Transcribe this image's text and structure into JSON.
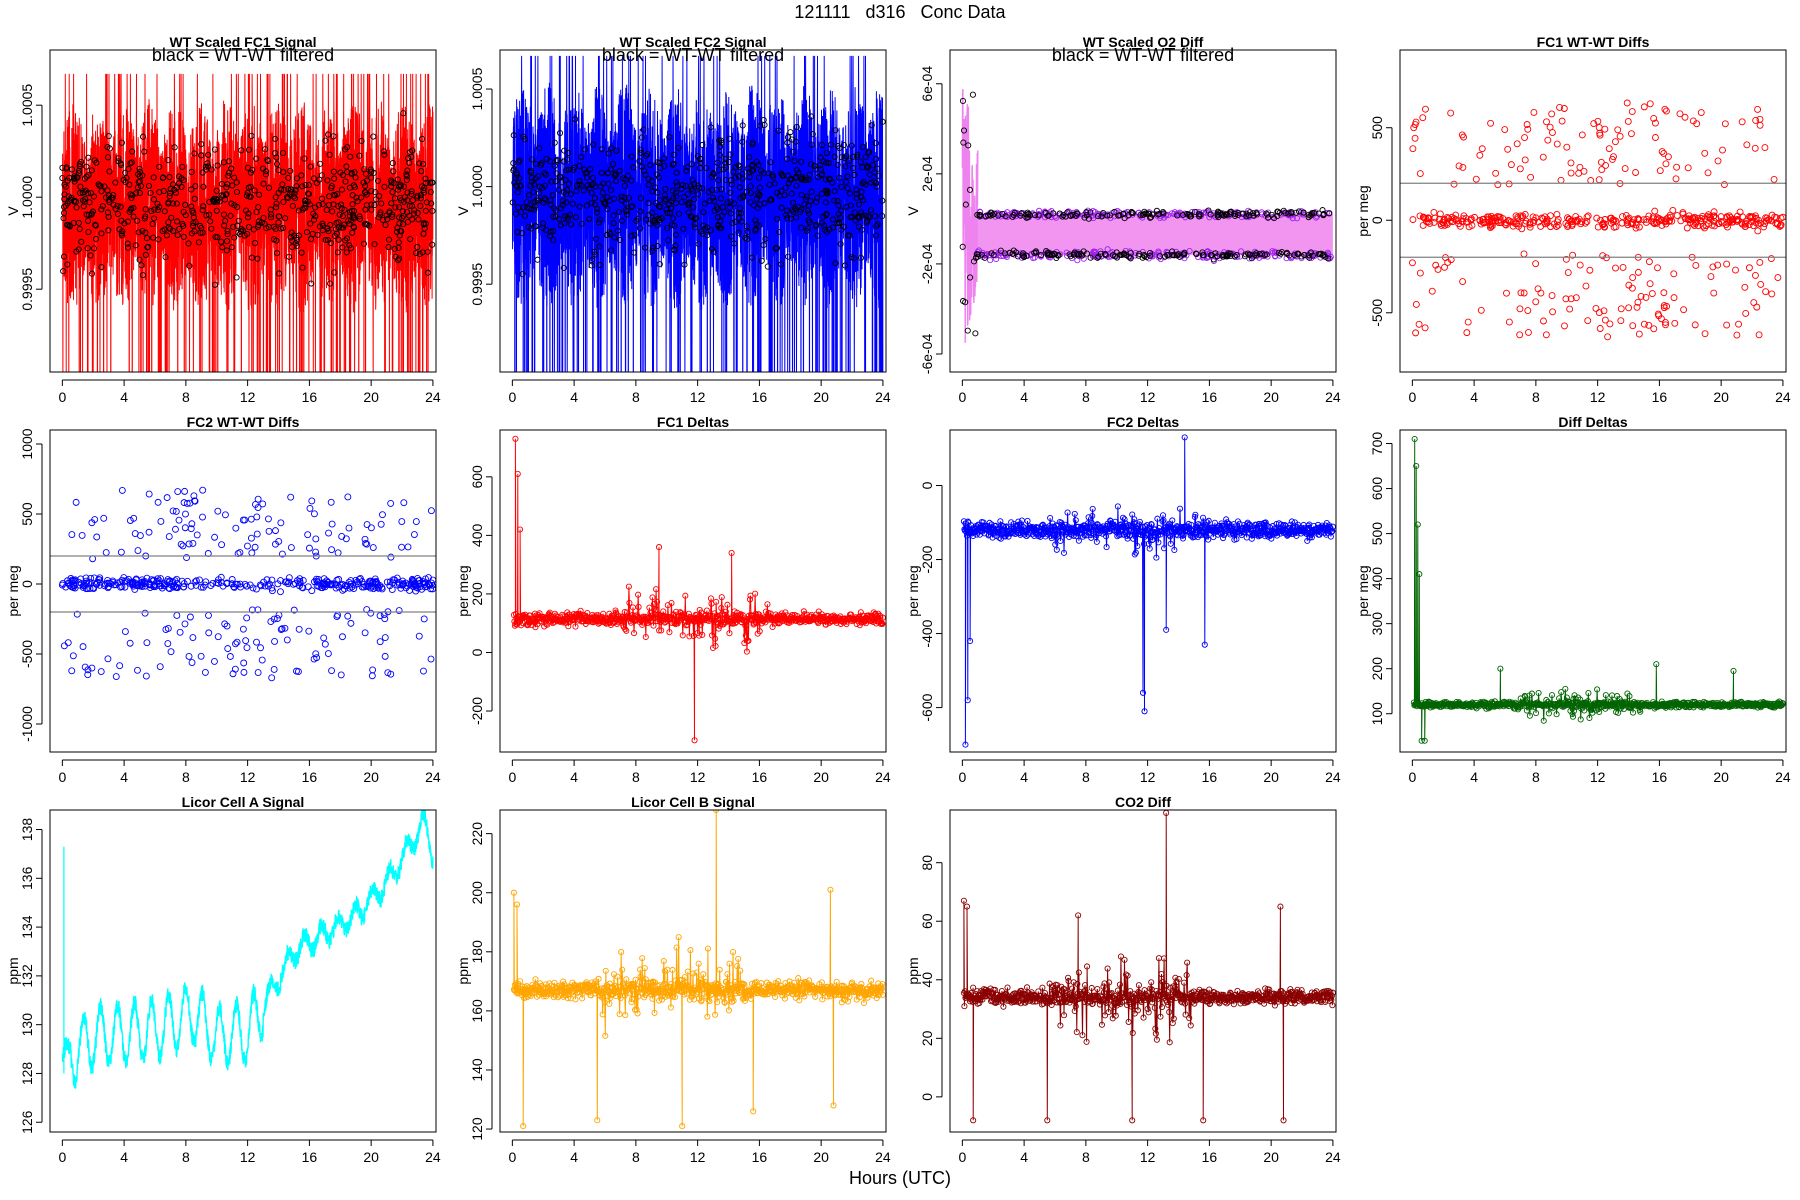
{
  "page": {
    "title": "121111   d316   Conc Data",
    "xlabel": "Hours (UTC)"
  },
  "colors": {
    "fc1": "#ff0000",
    "fc2": "#0000ff",
    "o2diff": "#ee82ee",
    "o2diff_points": "#a020f0",
    "filtered": "#000000",
    "diffdeltas": "#006400",
    "licorA": "#00ffff",
    "licorB": "#ffa500",
    "co2diff": "#8b0000",
    "refline": "#808080"
  },
  "chart_data": [
    {
      "id": "p1",
      "type": "line",
      "title": "WT Scaled FC1 Signal",
      "annotation": "black = WT-WT filtered",
      "xlabel": "",
      "ylabel": "V",
      "xlim": [
        -0.8,
        24.2
      ],
      "ylim": [
        0.99905,
        1.0008
      ],
      "xticks": [
        0,
        4,
        8,
        12,
        16,
        20,
        24
      ],
      "yticks": [
        0.9995,
        1.0,
        1.0005
      ],
      "yticklabels": [
        "0.9995",
        "1.0000",
        "1.0005"
      ],
      "series": [
        {
          "style": "dense-band",
          "color_key": "fc1",
          "center": 0.99995,
          "amp": 0.00045,
          "lower_spikes": 0.99905
        },
        {
          "style": "points",
          "color_key": "filtered",
          "center": 0.99995,
          "amp": 0.00035
        }
      ]
    },
    {
      "id": "p2",
      "type": "line",
      "title": "WT Scaled FC2 Signal",
      "annotation": "black = WT-WT filtered",
      "xlabel": "",
      "ylabel": "V",
      "xlim": [
        -0.8,
        24.2
      ],
      "ylim": [
        0.99905,
        1.0007
      ],
      "xticks": [
        0,
        4,
        8,
        12,
        16,
        20,
        24
      ],
      "yticks": [
        0.9995,
        1.0,
        1.0005
      ],
      "yticklabels": [
        "0.9995",
        "1.0000",
        "1.0005"
      ],
      "series": [
        {
          "style": "dense-band",
          "color_key": "fc2",
          "center": 0.99995,
          "amp": 0.00045,
          "lower_spikes": 0.99905
        },
        {
          "style": "points",
          "color_key": "filtered",
          "center": 0.99995,
          "amp": 0.00035
        }
      ]
    },
    {
      "id": "p3",
      "type": "line",
      "title": "WT Scaled O2 Diff",
      "annotation": "black = WT-WT filtered",
      "xlabel": "",
      "ylabel": "V",
      "xlim": [
        -0.8,
        24.2
      ],
      "ylim": [
        -0.00068,
        0.00075
      ],
      "xticks": [
        0,
        4,
        8,
        12,
        16,
        20,
        24
      ],
      "yticks": [
        -0.0006,
        -0.0002,
        0.0002,
        0.0006
      ],
      "yticklabels": [
        "-6e-04",
        "-2e-04",
        "2e-04",
        "6e-04"
      ],
      "series": [
        {
          "style": "two-band",
          "color_key": "o2diff",
          "upper": 2e-05,
          "lower": -0.00016
        },
        {
          "style": "two-band-points",
          "color_key": "filtered",
          "upper": 2e-05,
          "lower": -0.00016
        }
      ]
    },
    {
      "id": "p4",
      "type": "scatter",
      "title": "FC1 WT-WT Diffs",
      "xlabel": "",
      "ylabel": "per meg",
      "xlim": [
        -0.8,
        24.2
      ],
      "ylim": [
        -820,
        920
      ],
      "xticks": [
        0,
        4,
        8,
        12,
        16,
        20,
        24
      ],
      "yticks": [
        -500,
        0,
        500
      ],
      "yticklabels": [
        "-500",
        "0",
        "500"
      ],
      "hlines": [
        200,
        -200
      ],
      "series": [
        {
          "style": "bimodal-scatter",
          "color_key": "fc1",
          "spread": 650
        }
      ]
    },
    {
      "id": "p5",
      "type": "scatter",
      "title": "FC2 WT-WT Diffs",
      "xlabel": "",
      "ylabel": "per meg",
      "xlim": [
        -0.8,
        24.2
      ],
      "ylim": [
        -1200,
        1100
      ],
      "xticks": [
        0,
        4,
        8,
        12,
        16,
        20,
        24
      ],
      "yticks": [
        -1000,
        -500,
        0,
        500,
        1000
      ],
      "yticklabels": [
        "-1000",
        "-500",
        "0",
        "500",
        "1000"
      ],
      "hlines": [
        200,
        -200
      ],
      "series": [
        {
          "style": "bimodal-scatter",
          "color_key": "fc2",
          "spread": 700
        }
      ]
    },
    {
      "id": "p6",
      "type": "line",
      "title": "FC1 Deltas",
      "xlabel": "",
      "ylabel": "per meg",
      "xlim": [
        -0.8,
        24.2
      ],
      "ylim": [
        -340,
        760
      ],
      "xticks": [
        0,
        4,
        8,
        12,
        16,
        20,
        24
      ],
      "yticks": [
        -200,
        0,
        200,
        400,
        600
      ],
      "yticklabels": [
        "-200",
        "0",
        "200",
        "400",
        "600"
      ],
      "series": [
        {
          "style": "noisy-line",
          "color_key": "fc1",
          "base": 115,
          "noise": 20,
          "burst_from": 7,
          "burst_to": 17,
          "burst": 90,
          "spikes": [
            [
              0.2,
              730
            ],
            [
              0.35,
              610
            ],
            [
              0.5,
              420
            ],
            [
              11.8,
              -300
            ],
            [
              9.5,
              360
            ],
            [
              14.2,
              340
            ]
          ]
        }
      ]
    },
    {
      "id": "p7",
      "type": "line",
      "title": "FC2 Deltas",
      "xlabel": "",
      "ylabel": "per meg",
      "xlim": [
        -0.8,
        24.2
      ],
      "ylim": [
        -720,
        150
      ],
      "xticks": [
        0,
        4,
        8,
        12,
        16,
        20,
        24
      ],
      "yticks": [
        -600,
        -400,
        -200,
        0
      ],
      "yticklabels": [
        "-600",
        "-400",
        "-200",
        "0"
      ],
      "series": [
        {
          "style": "noisy-line",
          "color_key": "fc2",
          "base": -120,
          "noise": 20,
          "burst_from": 5.5,
          "burst_to": 16,
          "burst": 70,
          "spikes": [
            [
              0.2,
              -700
            ],
            [
              0.35,
              -580
            ],
            [
              0.5,
              -420
            ],
            [
              11.7,
              -560
            ],
            [
              11.8,
              -610
            ],
            [
              14.4,
              130
            ],
            [
              15.7,
              -430
            ],
            [
              13.2,
              -390
            ]
          ]
        }
      ]
    },
    {
      "id": "p8",
      "type": "line",
      "title": "Diff Deltas",
      "xlabel": "",
      "ylabel": "per meg",
      "xlim": [
        -0.8,
        24.2
      ],
      "ylim": [
        15,
        730
      ],
      "xticks": [
        0,
        4,
        8,
        12,
        16,
        20,
        24
      ],
      "yticks": [
        100,
        200,
        300,
        400,
        500,
        600,
        700
      ],
      "yticklabels": [
        "100",
        "200",
        "300",
        "400",
        "500",
        "600",
        "700"
      ],
      "series": [
        {
          "style": "noisy-line",
          "color_key": "diffdeltas",
          "base": 120,
          "noise": 6,
          "burst_from": 6.5,
          "burst_to": 15,
          "burst": 30,
          "spikes": [
            [
              0.15,
              710
            ],
            [
              0.25,
              650
            ],
            [
              0.35,
              520
            ],
            [
              0.45,
              410
            ],
            [
              0.6,
              40
            ],
            [
              5.7,
              200
            ],
            [
              15.8,
              210
            ],
            [
              20.8,
              195
            ],
            [
              0.8,
              40
            ]
          ]
        }
      ]
    },
    {
      "id": "p9",
      "type": "line",
      "title": "Licor Cell A Signal",
      "xlabel": "",
      "ylabel": "ppm",
      "xlim": [
        -0.8,
        24.2
      ],
      "ylim": [
        125.6,
        138.8
      ],
      "xticks": [
        0,
        4,
        8,
        12,
        16,
        20,
        24
      ],
      "yticks": [
        126,
        128,
        130,
        132,
        134,
        136,
        138
      ],
      "yticklabels": [
        "126",
        "128",
        "130",
        "132",
        "134",
        "136",
        "138"
      ],
      "series": [
        {
          "style": "trend-wave",
          "color_key": "licorA",
          "trend": [
            [
              0,
              128.5
            ],
            [
              2,
              129.5
            ],
            [
              6,
              129.8
            ],
            [
              8.5,
              130.5
            ],
            [
              10,
              129.5
            ],
            [
              12,
              129.7
            ],
            [
              15,
              133
            ],
            [
              19,
              134.5
            ],
            [
              21,
              135.8
            ],
            [
              23.5,
              138.3
            ],
            [
              24,
              137
            ]
          ],
          "wave_amp": 1.2,
          "wave_period": 1.1
        }
      ]
    },
    {
      "id": "p10",
      "type": "line",
      "title": "Licor Cell B Signal",
      "xlabel": "",
      "ylabel": "ppm",
      "xlim": [
        -0.8,
        24.2
      ],
      "ylim": [
        119,
        228
      ],
      "xticks": [
        0,
        4,
        8,
        12,
        16,
        20,
        24
      ],
      "yticks": [
        120,
        140,
        160,
        180,
        200,
        220
      ],
      "yticklabels": [
        "120",
        "140",
        "160",
        "180",
        "200",
        "220"
      ],
      "series": [
        {
          "style": "noisy-line",
          "color_key": "licorB",
          "base": 167,
          "noise": 3,
          "burst_from": 5.5,
          "burst_to": 15,
          "burst": 12,
          "spikes": [
            [
              0.1,
              200
            ],
            [
              0.3,
              196
            ],
            [
              0.7,
              121
            ],
            [
              5.5,
              123
            ],
            [
              11,
              121
            ],
            [
              13.2,
              228
            ],
            [
              15.6,
              126
            ],
            [
              20.8,
              128
            ],
            [
              20.6,
              201
            ]
          ]
        }
      ]
    },
    {
      "id": "p11",
      "type": "line",
      "title": "CO2 Diff",
      "xlabel": "",
      "ylabel": "ppm",
      "xlim": [
        -0.8,
        24.2
      ],
      "ylim": [
        -12,
        98
      ],
      "xticks": [
        0,
        4,
        8,
        12,
        16,
        20,
        24
      ],
      "yticks": [
        0,
        20,
        40,
        60,
        80
      ],
      "yticklabels": [
        "0",
        "20",
        "40",
        "60",
        "80"
      ],
      "series": [
        {
          "style": "noisy-line",
          "color_key": "co2diff",
          "base": 34,
          "noise": 2.5,
          "burst_from": 5.5,
          "burst_to": 15,
          "burst": 12,
          "spikes": [
            [
              0.1,
              67
            ],
            [
              0.3,
              65
            ],
            [
              0.7,
              -8
            ],
            [
              5.5,
              -8
            ],
            [
              11,
              -8
            ],
            [
              13.2,
              97
            ],
            [
              15.6,
              -8
            ],
            [
              20.8,
              -8
            ],
            [
              20.6,
              65
            ],
            [
              7.5,
              62
            ]
          ]
        }
      ]
    }
  ]
}
